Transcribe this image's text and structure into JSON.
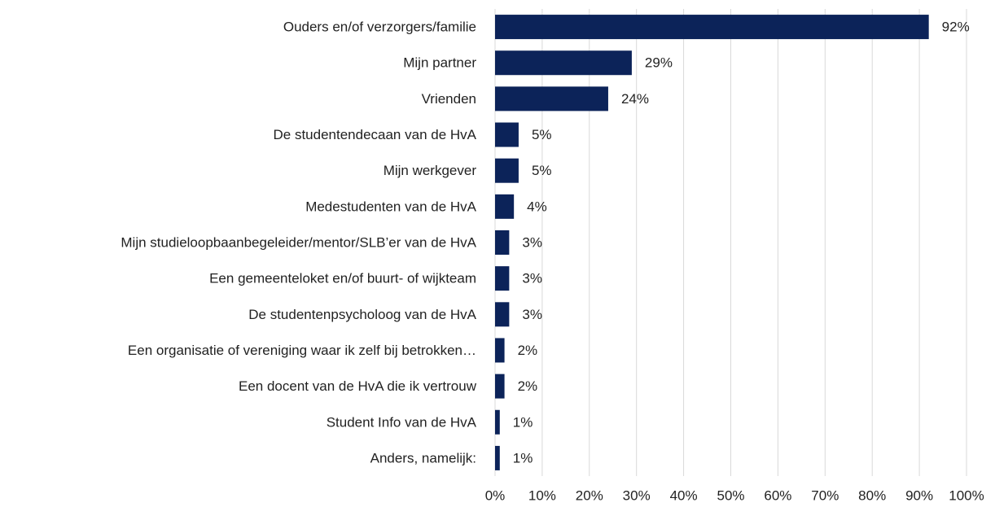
{
  "chart_data": {
    "type": "barh",
    "categories": [
      "Ouders en/of verzorgers/familie",
      "Mijn partner",
      "Vrienden",
      "De studentendecaan van de HvA",
      "Mijn werkgever",
      "Medestudenten van de HvA",
      "Mijn studieloopbaanbegeleider/mentor/SLB’er van de HvA",
      "Een gemeenteloket en/of buurt- of wijkteam",
      "De studentenpsycholoog van de HvA",
      "Een organisatie of vereniging waar ik zelf bij betrokken…",
      "Een docent van de HvA die ik vertrouw",
      "Student Info van de HvA",
      "Anders, namelijk:"
    ],
    "values": [
      92,
      29,
      24,
      5,
      5,
      4,
      3,
      3,
      3,
      2,
      2,
      1,
      1
    ],
    "value_labels": [
      "92%",
      "29%",
      "24%",
      "5%",
      "5%",
      "4%",
      "3%",
      "3%",
      "3%",
      "2%",
      "2%",
      "1%",
      "1%"
    ],
    "color": "#0c2359",
    "xlim": [
      0,
      100
    ],
    "xticks": [
      {
        "value": 0,
        "label": "0%"
      },
      {
        "value": 10,
        "label": "10%"
      },
      {
        "value": 20,
        "label": "20%"
      },
      {
        "value": 30,
        "label": "30%"
      },
      {
        "value": 40,
        "label": "40%"
      },
      {
        "value": 50,
        "label": "50%"
      },
      {
        "value": 60,
        "label": "60%"
      },
      {
        "value": 70,
        "label": "70%"
      },
      {
        "value": 80,
        "label": "80%"
      },
      {
        "value": 90,
        "label": "90%"
      },
      {
        "value": 100,
        "label": "100%"
      }
    ],
    "grid": true
  }
}
